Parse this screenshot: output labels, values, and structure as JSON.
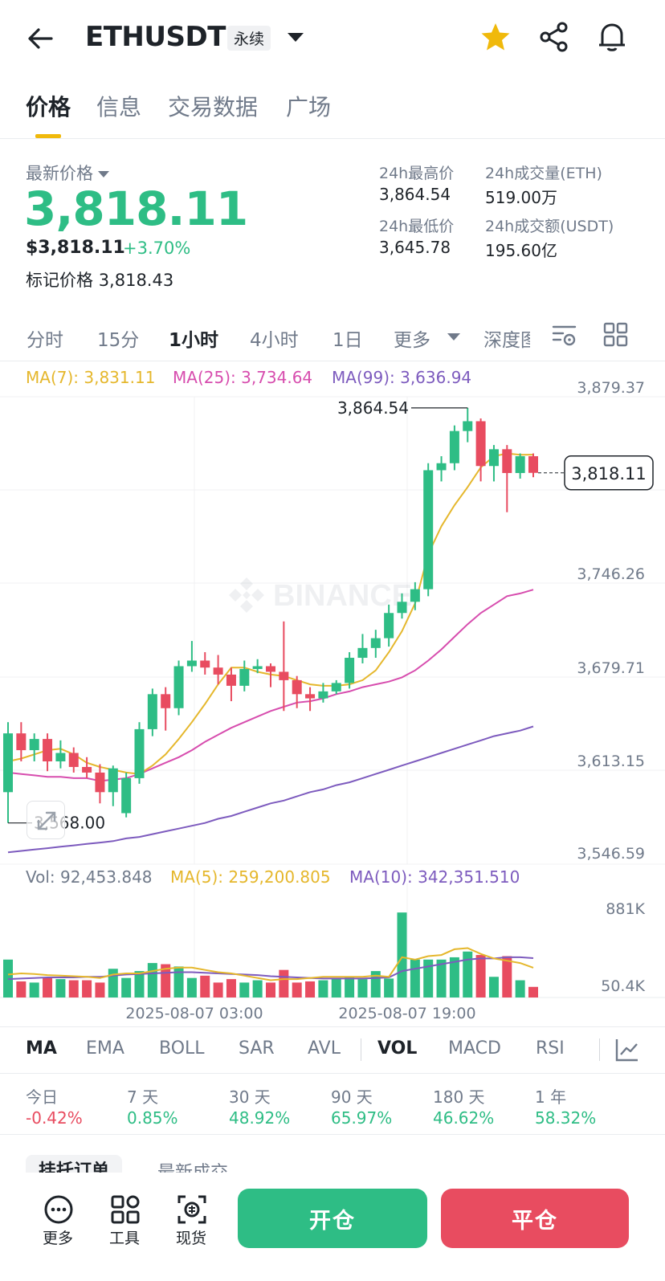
{
  "header": {
    "symbol": "ETHUSDT",
    "badge": "永续",
    "favorite_color": "#f0b90b"
  },
  "tabs": [
    {
      "label": "价格",
      "active": true
    },
    {
      "label": "信息",
      "active": false
    },
    {
      "label": "交易数据",
      "active": false
    },
    {
      "label": "广场",
      "active": false
    }
  ],
  "price": {
    "label": "最新价格",
    "last": "3,818.11",
    "usd": "$3,818.11",
    "change": "+3.70%",
    "mark_label": "标记价格",
    "mark_value": "3,818.43"
  },
  "stats": {
    "high_label": "24h最高价",
    "high_value": "3,864.54",
    "low_label": "24h最低价",
    "low_value": "3,645.78",
    "vol_label": "24h成交量(ETH)",
    "vol_value": "519.00万",
    "amt_label": "24h成交额(USDT)",
    "amt_value": "195.60亿"
  },
  "intervals": [
    {
      "label": "分时",
      "active": false
    },
    {
      "label": "15分",
      "active": false
    },
    {
      "label": "1小时",
      "active": true
    },
    {
      "label": "4小时",
      "active": false
    },
    {
      "label": "1日",
      "active": false
    },
    {
      "label": "更多",
      "active": false
    },
    {
      "label": "深度图",
      "active": false
    }
  ],
  "ma_legend": {
    "ma7": "MA(7): 3,831.11",
    "ma25": "MA(25): 3,734.64",
    "ma99": "MA(99): 3,636.94"
  },
  "vol_legend": {
    "vol": "Vol: 92,453.848",
    "ma5": "MA(5): 259,200.805",
    "ma10": "MA(10): 342,351.510"
  },
  "indicators_main": [
    "MA",
    "EMA",
    "BOLL",
    "SAR",
    "AVL"
  ],
  "indicators_sub": [
    "VOL",
    "MACD",
    "RSI"
  ],
  "performance": [
    {
      "label": "今日",
      "value": "-0.42%",
      "positive": false
    },
    {
      "label": "7 天",
      "value": "0.85%",
      "positive": true
    },
    {
      "label": "30 天",
      "value": "48.92%",
      "positive": true
    },
    {
      "label": "90 天",
      "value": "65.97%",
      "positive": true
    },
    {
      "label": "180 天",
      "value": "46.62%",
      "positive": true
    },
    {
      "label": "1 年",
      "value": "58.32%",
      "positive": true
    }
  ],
  "orderbook_tabs": [
    "挂托订单",
    "最新成交"
  ],
  "bottom": {
    "more": "更多",
    "tools": "工具",
    "spot": "现货",
    "open": "开仓",
    "close": "平仓"
  },
  "colors": {
    "up": "#2ebd85",
    "down": "#e84c60",
    "ma7": "#e5b72c",
    "ma25": "#d74dae",
    "ma99": "#7d5bbe"
  },
  "chart_data": {
    "type": "candlestick",
    "watermark": "BINANCE",
    "y_ticks": [
      "3,879.37",
      "3,746.26",
      "3,679.71",
      "3,613.15",
      "3,546.59"
    ],
    "price_range": [
      3546.59,
      3879.37
    ],
    "last_price_label": "3,818.11",
    "last_price": 3818.11,
    "high_label": "3,864.54",
    "high": 3864.54,
    "low_label": "3,568.00",
    "low": 3568.0,
    "x_ticks": [
      "2025-08-07 03:00",
      "2025-08-07 19:00"
    ],
    "vol_ticks": [
      "881K",
      "50.4K"
    ],
    "vol_range": [
      50.4,
      881
    ],
    "candles": [
      [
        3590,
        3632,
        3568,
        3640
      ],
      [
        3632,
        3620,
        3612,
        3640
      ],
      [
        3620,
        3628,
        3612,
        3632
      ],
      [
        3628,
        3612,
        3605,
        3632
      ],
      [
        3612,
        3618,
        3607,
        3627
      ],
      [
        3618,
        3608,
        3604,
        3622
      ],
      [
        3608,
        3604,
        3600,
        3615
      ],
      [
        3604,
        3590,
        3582,
        3610
      ],
      [
        3590,
        3607,
        3580,
        3609
      ],
      [
        3575,
        3600,
        3572,
        3604
      ],
      [
        3600,
        3635,
        3596,
        3640
      ],
      [
        3635,
        3660,
        3630,
        3664
      ],
      [
        3660,
        3650,
        3634,
        3665
      ],
      [
        3650,
        3680,
        3645,
        3684
      ],
      [
        3680,
        3684,
        3676,
        3698
      ],
      [
        3684,
        3679,
        3674,
        3690
      ],
      [
        3679,
        3674,
        3667,
        3688
      ],
      [
        3674,
        3666,
        3655,
        3679
      ],
      [
        3666,
        3678,
        3662,
        3684
      ],
      [
        3678,
        3680,
        3675,
        3685
      ],
      [
        3680,
        3676,
        3665,
        3682
      ],
      [
        3676,
        3670,
        3648,
        3712
      ],
      [
        3670,
        3660,
        3650,
        3673
      ],
      [
        3660,
        3657,
        3648,
        3665
      ],
      [
        3657,
        3662,
        3654,
        3668
      ],
      [
        3662,
        3668,
        3660,
        3670
      ],
      [
        3668,
        3686,
        3664,
        3690
      ],
      [
        3686,
        3693,
        3682,
        3703
      ],
      [
        3693,
        3700,
        3686,
        3706
      ],
      [
        3700,
        3718,
        3694,
        3724
      ],
      [
        3718,
        3726,
        3714,
        3732
      ],
      [
        3726,
        3735,
        3720,
        3740
      ],
      [
        3735,
        3820,
        3730,
        3825
      ],
      [
        3820,
        3825,
        3812,
        3830
      ],
      [
        3825,
        3848,
        3820,
        3852
      ],
      [
        3848,
        3855,
        3840,
        3864.54
      ],
      [
        3855,
        3823,
        3812,
        3857
      ],
      [
        3823,
        3835,
        3812,
        3838
      ],
      [
        3835,
        3818,
        3790,
        3838
      ],
      [
        3818,
        3830,
        3814,
        3832
      ],
      [
        3830,
        3818.11,
        3815,
        3832
      ]
    ],
    "ma7": [
      3612,
      3614,
      3617,
      3620,
      3621,
      3617,
      3611,
      3608,
      3606,
      3604,
      3603,
      3609,
      3617,
      3628,
      3640,
      3653,
      3667,
      3679,
      3679,
      3676,
      3674,
      3673,
      3670,
      3667,
      3666,
      3666,
      3667,
      3670,
      3677,
      3690,
      3705,
      3725,
      3760,
      3780,
      3795,
      3808,
      3822,
      3830,
      3832,
      3831,
      3831.11
    ],
    "ma25": [
      3604,
      3603,
      3602,
      3601,
      3601,
      3600,
      3600,
      3598,
      3599,
      3600,
      3603,
      3607,
      3611,
      3615,
      3620,
      3626,
      3631,
      3636,
      3640,
      3644,
      3648,
      3651,
      3654,
      3655,
      3657,
      3660,
      3662,
      3665,
      3667,
      3669,
      3672,
      3677,
      3684,
      3692,
      3701,
      3710,
      3718,
      3724,
      3730,
      3732,
      3734.64
    ],
    "ma99": [
      3547,
      3548,
      3549,
      3550,
      3551,
      3552,
      3553,
      3554,
      3555,
      3557,
      3558,
      3560,
      3562,
      3564,
      3566,
      3568,
      3571,
      3573,
      3576,
      3579,
      3582,
      3584,
      3587,
      3590,
      3592,
      3595,
      3597,
      3600,
      3603,
      3606,
      3609,
      3612,
      3615,
      3618,
      3621,
      3624,
      3627,
      3630,
      3632,
      3634,
      3636.94
    ],
    "volume": [
      330,
      140,
      130,
      170,
      160,
      150,
      150,
      130,
      250,
      170,
      230,
      300,
      290,
      270,
      170,
      190,
      130,
      160,
      130,
      150,
      130,
      240,
      130,
      140,
      150,
      165,
      180,
      160,
      230,
      165,
      740,
      330,
      330,
      330,
      350,
      400,
      370,
      180,
      360,
      150,
      92.453848
    ],
    "vol_ma5": [
      200,
      210,
      205,
      195,
      190,
      185,
      180,
      170,
      200,
      210,
      210,
      230,
      250,
      260,
      260,
      240,
      220,
      210,
      190,
      170,
      150,
      160,
      160,
      170,
      180,
      180,
      180,
      180,
      190,
      180,
      350,
      330,
      360,
      370,
      420,
      430,
      380,
      340,
      320,
      300,
      259.200805
    ],
    "vol_ma10": [
      160,
      165,
      170,
      175,
      175,
      175,
      180,
      180,
      190,
      200,
      205,
      210,
      215,
      220,
      220,
      215,
      210,
      205,
      200,
      195,
      185,
      180,
      175,
      170,
      165,
      165,
      165,
      165,
      170,
      175,
      230,
      250,
      270,
      290,
      310,
      330,
      340,
      340,
      350,
      350,
      342.35151
    ]
  }
}
